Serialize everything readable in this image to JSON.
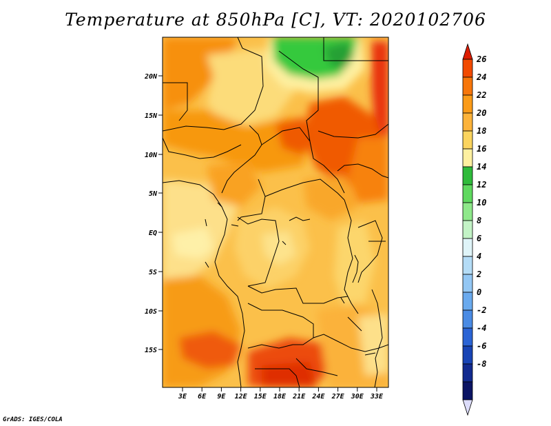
{
  "title": "Temperature at 850hPa [C], VT: 2020102706",
  "credit": "GrADS: IGES/COLA",
  "map": {
    "lat_labels": [
      "20N",
      "15N",
      "10N",
      "5N",
      "EQ",
      "5S",
      "10S",
      "15S"
    ],
    "lon_labels": [
      "3E",
      "6E",
      "9E",
      "12E",
      "15E",
      "18E",
      "21E",
      "24E",
      "27E",
      "30E",
      "33E"
    ]
  },
  "colorbar": {
    "labels": [
      "26",
      "24",
      "22",
      "20",
      "18",
      "16",
      "14",
      "12",
      "10",
      "8",
      "6",
      "4",
      "2",
      "0",
      "-2",
      "-4",
      "-6",
      "-8"
    ],
    "colors": [
      "#dd1c00",
      "#f24a00",
      "#f7760a",
      "#fb9b18",
      "#fdb33a",
      "#fbd45e",
      "#fef0a0",
      "#2fbb3b",
      "#5fd95f",
      "#8ee88a",
      "#c3f3c6",
      "#dff4f8",
      "#b4dcf6",
      "#93c7f4",
      "#6aaaee",
      "#4a8be4",
      "#2b64d5",
      "#1844b5",
      "#122a8f",
      "#0b1464",
      "#dcdcfa"
    ]
  },
  "chart_data": {
    "type": "heatmap",
    "title": "Temperature at 850hPa [C], VT: 2020102706",
    "xlabel": "",
    "ylabel": "",
    "x_ticks": [
      "3E",
      "6E",
      "9E",
      "12E",
      "15E",
      "18E",
      "21E",
      "24E",
      "27E",
      "30E",
      "33E"
    ],
    "y_ticks": [
      "20N",
      "15N",
      "10N",
      "5N",
      "EQ",
      "5S",
      "10S",
      "15S"
    ],
    "colorbar_levels": [
      -8,
      -6,
      -4,
      -2,
      0,
      2,
      4,
      6,
      8,
      10,
      12,
      14,
      16,
      18,
      20,
      22,
      24,
      26
    ],
    "units": "C"
  }
}
